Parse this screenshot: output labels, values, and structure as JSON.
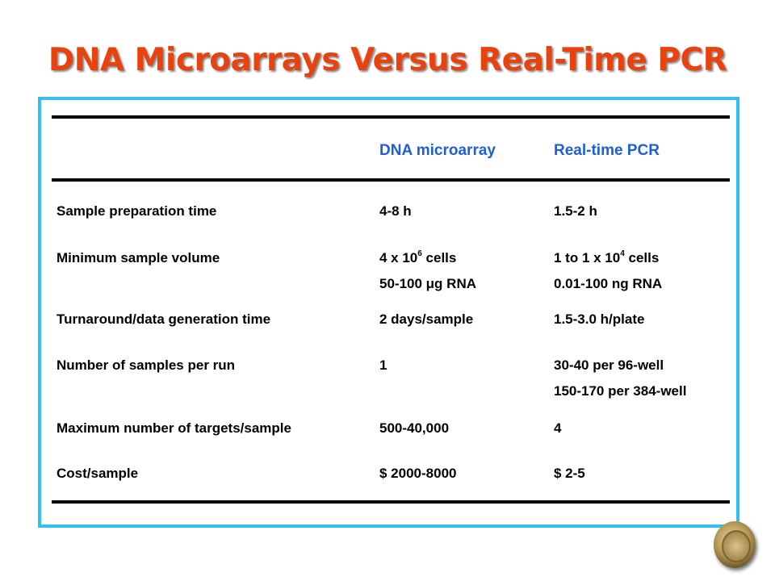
{
  "title": "DNA Microarrays Versus Real-Time PCR",
  "table": {
    "headers": [
      "",
      "DNA microarray",
      "Real-time PCR"
    ],
    "rows": [
      {
        "label": "Sample preparation time",
        "a1": "4-8 h",
        "b1": "1.5-2 h"
      },
      {
        "label": "Minimum sample volume",
        "a1_pre": "4 x 10",
        "a1_sup": "6",
        "a1_post": " cells",
        "a2": "50-100 μg RNA",
        "b1_pre": "1 to 1 x 10",
        "b1_sup": "4",
        "b1_post": " cells",
        "b2": "0.01-100 ng RNA"
      },
      {
        "label": "Turnaround/data generation time",
        "a1": "2 days/sample",
        "b1": "1.5-3.0 h/plate"
      },
      {
        "label": "Number of samples per run",
        "a1": "1",
        "b1": "30-40 per 96-well",
        "b2": "150-170 per 384-well"
      },
      {
        "label": "Maximum number of targets/sample",
        "a1": "500-40,000",
        "b1": "4"
      },
      {
        "label": "Cost/sample",
        "a1": "$ 2000-8000",
        "b1": "$ 2-5"
      }
    ]
  },
  "colors": {
    "title": "#e8420e",
    "frame": "#33bff0",
    "header": "#1d5fd4"
  },
  "icons": {
    "seal": "university-seal-icon"
  }
}
